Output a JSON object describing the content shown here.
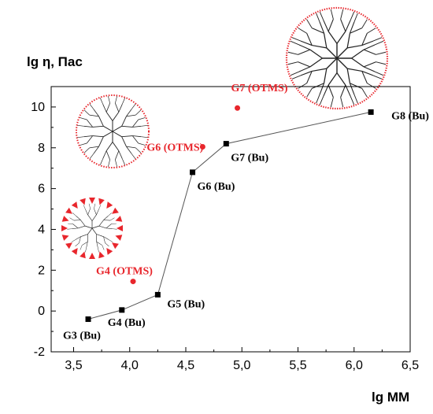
{
  "chart_data": {
    "type": "scatter",
    "xlabel": "lg MM",
    "ylabel": "lg η, Пас",
    "xlim": [
      3.3,
      6.5
    ],
    "ylim": [
      -2,
      11
    ],
    "xticks": [
      "3,5",
      "4,0",
      "4,5",
      "5,0",
      "5,5",
      "6,0",
      "6,5"
    ],
    "xtick_values": [
      3.5,
      4.0,
      4.5,
      5.0,
      5.5,
      6.0,
      6.5
    ],
    "yticks": [
      "-2",
      "0",
      "2",
      "4",
      "6",
      "8",
      "10"
    ],
    "ytick_values": [
      -2,
      0,
      2,
      4,
      6,
      8,
      10
    ],
    "series": [
      {
        "name": "Bu",
        "color": "#000000",
        "marker": "square",
        "connected": true,
        "points": [
          {
            "label": "G3 (Bu)",
            "x": 3.63,
            "y": -0.4
          },
          {
            "label": "G4 (Bu)",
            "x": 3.93,
            "y": 0.05
          },
          {
            "label": "G5 (Bu)",
            "x": 4.25,
            "y": 0.8
          },
          {
            "label": "G6 (Bu)",
            "x": 4.56,
            "y": 6.8
          },
          {
            "label": "G7 (Bu)",
            "x": 4.86,
            "y": 8.2
          },
          {
            "label": "G8 (Bu)",
            "x": 6.15,
            "y": 9.75
          }
        ]
      },
      {
        "name": "OTMS",
        "color": "#e8262c",
        "marker": "circle",
        "connected": false,
        "points": [
          {
            "label": "G4 (OTMS)",
            "x": 4.03,
            "y": 1.45
          },
          {
            "label": "G6 (OTMS)",
            "x": 4.65,
            "y": 8.05
          },
          {
            "label": "G7 (OTMS)",
            "x": 4.96,
            "y": 9.95
          }
        ]
      }
    ],
    "grid": false
  }
}
